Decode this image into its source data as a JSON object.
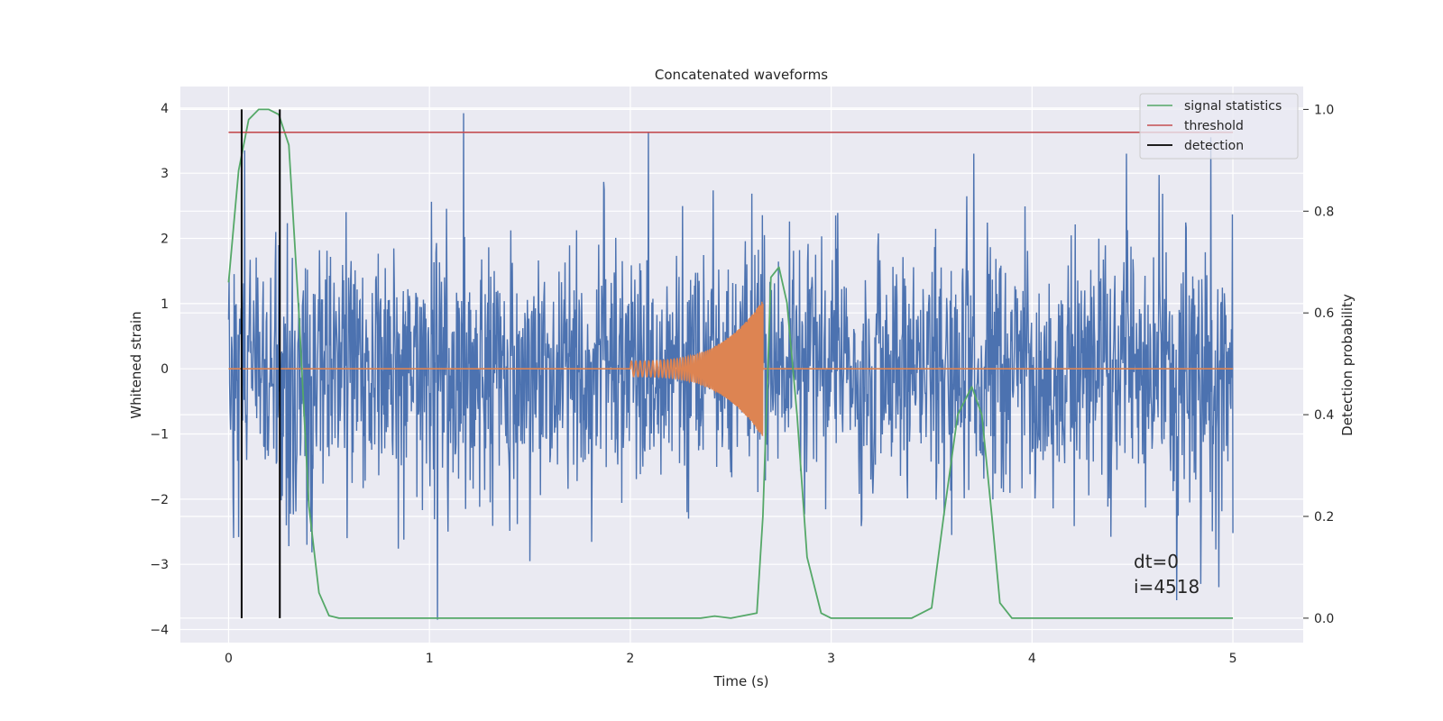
{
  "chart_data": {
    "type": "line",
    "title": "Concatenated waveforms",
    "xlabel": "Time (s)",
    "ylabel": "Whitened strain",
    "y2label": "Detection probability",
    "xlim": [
      -0.24,
      5.35
    ],
    "ylim": [
      -4.2,
      4.33
    ],
    "y2lim": [
      -0.048,
      1.045
    ],
    "xticks": [
      0,
      1,
      2,
      3,
      4,
      5
    ],
    "yticks": [
      -4,
      -3,
      -2,
      -1,
      0,
      1,
      2,
      3,
      4
    ],
    "y2ticks": [
      0.0,
      0.2,
      0.4,
      0.6,
      0.8,
      1.0
    ],
    "grid": true,
    "legend_position": "top-right",
    "series": [
      {
        "name": "",
        "axis": "left",
        "color": "#4c72b0",
        "kind": "noise",
        "x_range": [
          0,
          5
        ],
        "samples": 2000,
        "std": 0.95,
        "spikes": [
          {
            "x": 0.08,
            "y": 3.35
          },
          {
            "x": 0.3,
            "y": -2.72
          },
          {
            "x": 0.41,
            "y": -2.5
          },
          {
            "x": 1.04,
            "y": -3.85
          },
          {
            "x": 1.17,
            "y": 3.92
          },
          {
            "x": 1.5,
            "y": -2.95
          },
          {
            "x": 2.09,
            "y": 3.62
          },
          {
            "x": 3.6,
            "y": -2.55
          },
          {
            "x": 3.71,
            "y": 3.3
          },
          {
            "x": 4.47,
            "y": 3.3
          },
          {
            "x": 4.72,
            "y": -3.55
          },
          {
            "x": 4.84,
            "y": -3.3
          },
          {
            "x": 4.89,
            "y": 3.55
          },
          {
            "x": 4.93,
            "y": -3.35
          }
        ]
      },
      {
        "name": "",
        "axis": "left",
        "color": "#dd8452",
        "kind": "chirp",
        "flat_range": [
          0,
          5
        ],
        "chirp_start": 2.0,
        "chirp_end": 2.66,
        "amp_start": 0.12,
        "amp_end": 1.05
      },
      {
        "name": "signal statistics",
        "axis": "right",
        "color": "#55a868",
        "x": [
          0.0,
          0.05,
          0.1,
          0.15,
          0.2,
          0.25,
          0.3,
          0.35,
          0.4,
          0.45,
          0.5,
          0.55,
          1.0,
          2.0,
          2.35,
          2.42,
          2.5,
          2.63,
          2.66,
          2.7,
          2.74,
          2.78,
          2.83,
          2.88,
          2.95,
          3.0,
          3.4,
          3.5,
          3.56,
          3.63,
          3.7,
          3.75,
          3.8,
          3.84,
          3.9,
          4.0,
          5.0
        ],
        "y": [
          0.66,
          0.88,
          0.98,
          1.0,
          1.0,
          0.99,
          0.93,
          0.6,
          0.22,
          0.05,
          0.005,
          0.0,
          0.0,
          0.0,
          0.0,
          0.004,
          0.0,
          0.01,
          0.2,
          0.67,
          0.69,
          0.62,
          0.4,
          0.12,
          0.01,
          0.0,
          0.0,
          0.02,
          0.2,
          0.4,
          0.455,
          0.4,
          0.2,
          0.03,
          0.0,
          0.0,
          0.0
        ]
      },
      {
        "name": "threshold",
        "axis": "right",
        "color": "#c44e52",
        "x": [
          0,
          5
        ],
        "y": [
          0.955,
          0.955
        ]
      },
      {
        "name": "detection",
        "axis": "right",
        "color": "#000000",
        "kind": "vlines",
        "x": [
          0.065,
          0.255
        ],
        "y_range": [
          0.0,
          1.0
        ]
      }
    ],
    "annotations": [
      "dt=0",
      "i=4518"
    ]
  }
}
